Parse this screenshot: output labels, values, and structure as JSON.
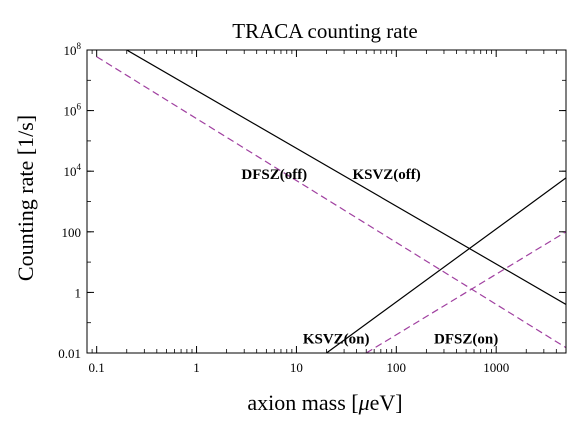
{
  "chart_data": {
    "type": "line",
    "title": "TRACA counting rate",
    "xlabel_prefix": "axion mass [",
    "xlabel_mu": "μ",
    "xlabel_suffix": "eV]",
    "ylabel": "Counting  rate [1/s]",
    "xscale": "log",
    "yscale": "log",
    "xlim": [
      0.08,
      5000
    ],
    "ylim": [
      0.01,
      100000000
    ],
    "grid": false,
    "x_ticks": [
      {
        "value": 0.1,
        "label": "0.1"
      },
      {
        "value": 1,
        "label": "1"
      },
      {
        "value": 10,
        "label": "10"
      },
      {
        "value": 100,
        "label": "100"
      },
      {
        "value": 1000,
        "label": "1000"
      }
    ],
    "y_ticks": [
      {
        "value": 0.01,
        "label": "0.01"
      },
      {
        "value": 1,
        "label": "1"
      },
      {
        "value": 100,
        "label": "100"
      },
      {
        "value": 10000,
        "label": "10",
        "exp": "4"
      },
      {
        "value": 1000000,
        "label": "10",
        "exp": "6"
      },
      {
        "value": 100000000,
        "label": "10",
        "exp": "8"
      }
    ],
    "series": [
      {
        "name": "KSVZ(off)",
        "style": "solid",
        "color": "#000000",
        "x": [
          0.2,
          5000
        ],
        "y": [
          100000000,
          0.4
        ]
      },
      {
        "name": "DFSZ(off)",
        "style": "dashed",
        "color": "#a040a0",
        "x": [
          0.1,
          5000
        ],
        "y": [
          60000000,
          0.015
        ]
      },
      {
        "name": "KSVZ(on)",
        "style": "solid",
        "color": "#000000",
        "x": [
          20,
          5000
        ],
        "y": [
          0.01,
          6000
        ]
      },
      {
        "name": "DFSZ(on)",
        "style": "dashed",
        "color": "#a040a0",
        "x": [
          50,
          5000
        ],
        "y": [
          0.01,
          100
        ]
      }
    ],
    "annotations": [
      {
        "text": "DFSZ(off)",
        "x": 6,
        "y": 8000
      },
      {
        "text": "KSVZ(off)",
        "x": 80,
        "y": 8000
      },
      {
        "text": "KSVZ(on)",
        "x": 25,
        "y": 0.03
      },
      {
        "text": "DFSZ(on)",
        "x": 500,
        "y": 0.03
      }
    ]
  }
}
